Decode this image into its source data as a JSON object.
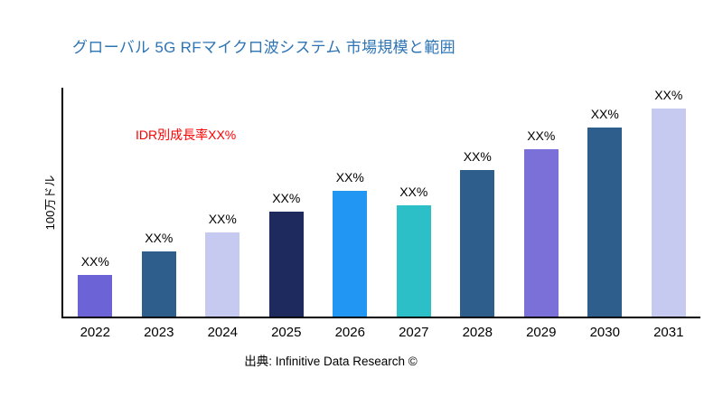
{
  "page": {
    "title": "グローバル 5G RFマイクロ波システム 市場規模と範囲",
    "source": "出典: Infinitive Data Research ©"
  },
  "chart_data": {
    "type": "bar",
    "title": "グローバル 5G RFマイクロ波システム 市場規模と範囲",
    "ylabel": "100万ドル",
    "xlabel": "",
    "annotation": "IDR別成長率XX%",
    "categories": [
      "2022",
      "2023",
      "2024",
      "2025",
      "2026",
      "2027",
      "2028",
      "2029",
      "2030",
      "2031"
    ],
    "values": [
      20,
      31,
      40,
      50,
      60,
      53,
      70,
      80,
      90,
      100
    ],
    "bar_labels": [
      "XX%",
      "XX%",
      "XX%",
      "XX%",
      "XX%",
      "XX%",
      "XX%",
      "XX%",
      "XX%",
      "XX%"
    ],
    "bar_colors": [
      "#6C63D6",
      "#2E5F8C",
      "#C6C9F0",
      "#1E2A5E",
      "#2196F3",
      "#2CBFC7",
      "#2E5F8C",
      "#7B6FD8",
      "#2E5F8C",
      "#C6C9F0"
    ],
    "ylim": [
      0,
      110
    ],
    "grid": false,
    "legend": false,
    "colors": {
      "title": "#2E74B5",
      "annotation": "#FF0000",
      "axis": "#000000"
    },
    "source": "出典: Infinitive Data Research ©"
  }
}
